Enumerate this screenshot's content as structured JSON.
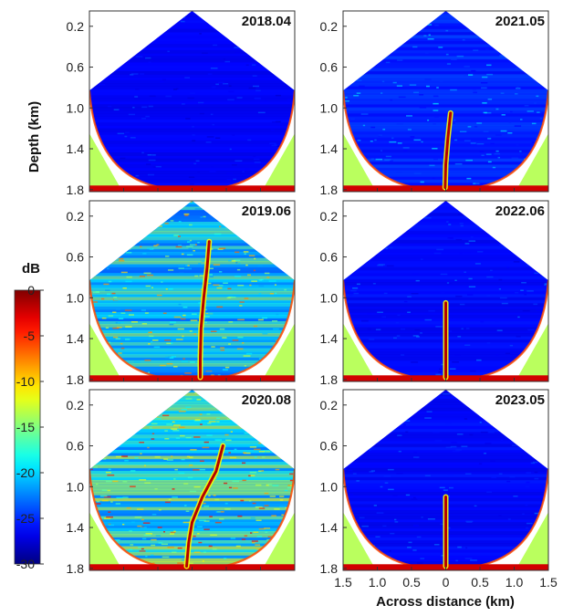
{
  "chart_data": {
    "type": "heatmap",
    "description_units": "sonar fan backscatter images",
    "ylabel": "Depth (km)",
    "xlabel": "Across distance (km)",
    "depth_ticks": [
      "0.2",
      "0.6",
      "1.0",
      "1.4",
      "1.8"
    ],
    "distance_ticks": [
      "1.5",
      "1.0",
      "0.5",
      "0",
      "0.5",
      "1.0",
      "1.5"
    ],
    "ylim": [
      0.05,
      1.82
    ],
    "xlim": [
      -1.5,
      1.5
    ],
    "colorbar": {
      "label": "dB",
      "ticks": [
        "0",
        "-5",
        "-10",
        "-15",
        "-20",
        "-25",
        "-30"
      ],
      "range": [
        -30,
        0
      ],
      "colormap": "jet"
    },
    "panels": [
      {
        "label": "2018.04",
        "column": 0,
        "row": 0,
        "background_level": 0.12,
        "plume": null
      },
      {
        "label": "2019.06",
        "column": 0,
        "row": 1,
        "background_level": 0.45,
        "plume": [
          [
            0.45,
            0.25
          ],
          [
            0.7,
            0.22
          ],
          [
            1.0,
            0.17
          ],
          [
            1.3,
            0.13
          ],
          [
            1.6,
            0.12
          ],
          [
            1.78,
            0.12
          ]
        ]
      },
      {
        "label": "2020.08",
        "column": 0,
        "row": 2,
        "background_level": 0.5,
        "plume": [
          [
            0.6,
            0.45
          ],
          [
            0.85,
            0.35
          ],
          [
            1.1,
            0.15
          ],
          [
            1.35,
            0.0
          ],
          [
            1.55,
            -0.05
          ],
          [
            1.78,
            -0.08
          ]
        ]
      },
      {
        "label": "2021.05",
        "column": 1,
        "row": 0,
        "background_level": 0.2,
        "plume": [
          [
            1.05,
            0.07
          ],
          [
            1.3,
            0.03
          ],
          [
            1.55,
            0.0
          ],
          [
            1.78,
            -0.01
          ]
        ]
      },
      {
        "label": "2022.06",
        "column": 1,
        "row": 1,
        "background_level": 0.14,
        "plume": [
          [
            1.05,
            0.0
          ],
          [
            1.4,
            0.0
          ],
          [
            1.78,
            0.0
          ]
        ]
      },
      {
        "label": "2023.05",
        "column": 1,
        "row": 2,
        "background_level": 0.14,
        "plume": [
          [
            1.1,
            0.0
          ],
          [
            1.4,
            0.0
          ],
          [
            1.78,
            0.0
          ]
        ]
      }
    ]
  }
}
